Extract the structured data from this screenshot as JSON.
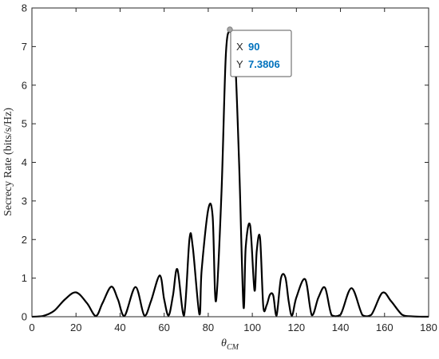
{
  "chart_data": {
    "type": "line",
    "title": "",
    "xlabel_base": "θ",
    "xlabel_sub": "CM",
    "ylabel": "Secrecy Rate (bits/s/Hz)",
    "xlim": [
      0,
      180
    ],
    "ylim": [
      0,
      8
    ],
    "xticks": [
      0,
      20,
      40,
      60,
      80,
      100,
      120,
      140,
      160,
      180
    ],
    "yticks": [
      0,
      1,
      2,
      3,
      4,
      5,
      6,
      7,
      8
    ],
    "grid": false,
    "line_color": "#000000",
    "x": [
      0,
      5,
      10,
      15,
      20,
      25,
      29,
      32,
      36,
      39,
      42,
      47,
      51,
      54,
      58,
      60,
      62,
      64,
      66,
      69,
      71.5,
      73,
      76,
      77,
      80,
      82,
      83.5,
      86,
      88,
      90,
      92,
      94,
      96,
      97,
      99,
      101,
      102,
      103.5,
      105,
      106.5,
      108,
      109.5,
      111,
      113,
      115,
      116.5,
      118,
      120,
      124,
      127,
      130,
      133,
      136,
      140,
      145,
      150,
      154,
      159,
      163,
      168,
      172,
      177,
      180
    ],
    "y": [
      0,
      0.02,
      0.15,
      0.45,
      0.63,
      0.35,
      0.02,
      0.35,
      0.78,
      0.45,
      0.02,
      0.77,
      0.03,
      0.4,
      1.07,
      0.45,
      0.03,
      0.55,
      1.23,
      0.03,
      2.02,
      1.8,
      0.06,
      1.2,
      2.78,
      2.6,
      0.4,
      3.2,
      6.8,
      7.3806,
      6.9,
      4.0,
      0.25,
      1.8,
      2.37,
      0.68,
      1.7,
      2.05,
      0.25,
      0.3,
      0.57,
      0.55,
      0.03,
      1.0,
      1.02,
      0.4,
      0.03,
      0.5,
      0.97,
      0.04,
      0.5,
      0.75,
      0.04,
      0.05,
      0.74,
      0.04,
      0.05,
      0.62,
      0.4,
      0.05,
      0.01,
      0,
      0
    ],
    "datatip": {
      "x_key": "X",
      "y_key": "Y",
      "x_value": "90",
      "y_value": "7.3806"
    }
  }
}
